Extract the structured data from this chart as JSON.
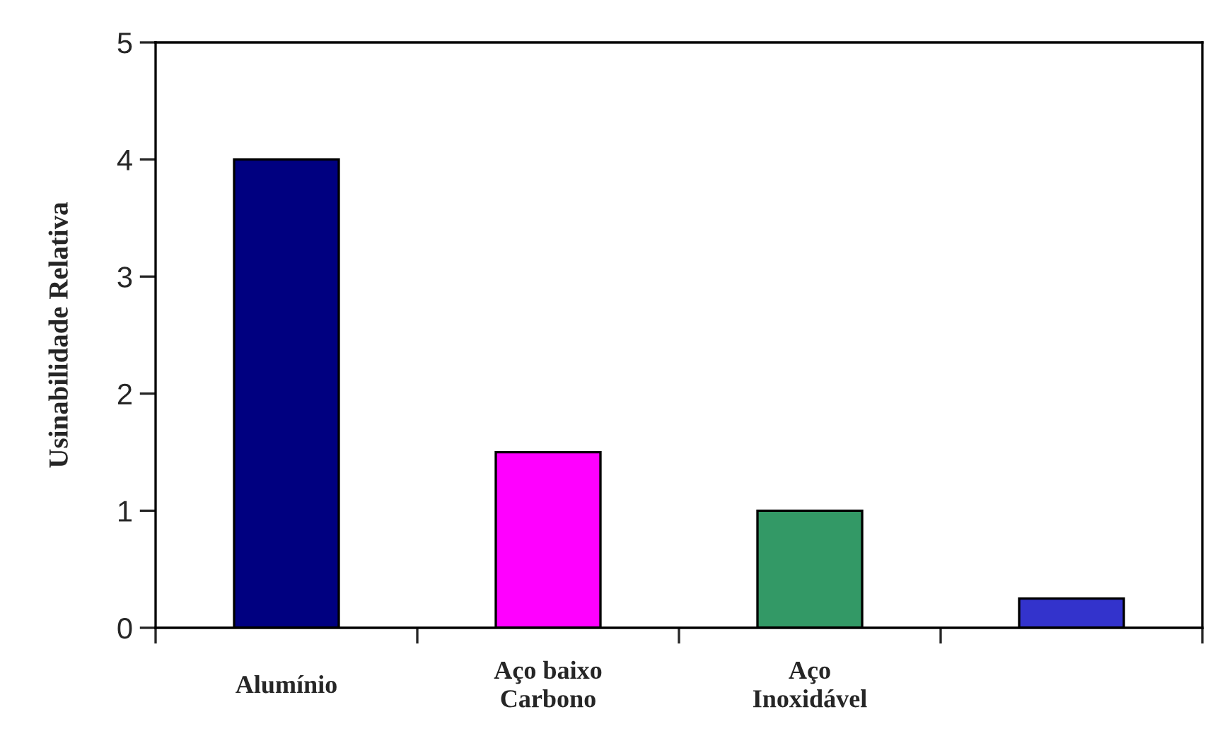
{
  "chart_data": {
    "type": "bar",
    "ylabel": "Usinabilidade Relativa",
    "categories": [
      "Alumínio",
      "Aço baixo\nCarbono",
      "Aço\nInoxidável",
      null
    ],
    "values": [
      4,
      1.5,
      1,
      0.25
    ],
    "colors": [
      "#000080",
      "#ff00ff",
      "#339966",
      "#3333cc"
    ],
    "ylim": [
      0,
      5
    ],
    "yticks": [
      0,
      1,
      2,
      3,
      4,
      5
    ],
    "grid": false,
    "legend": false
  }
}
